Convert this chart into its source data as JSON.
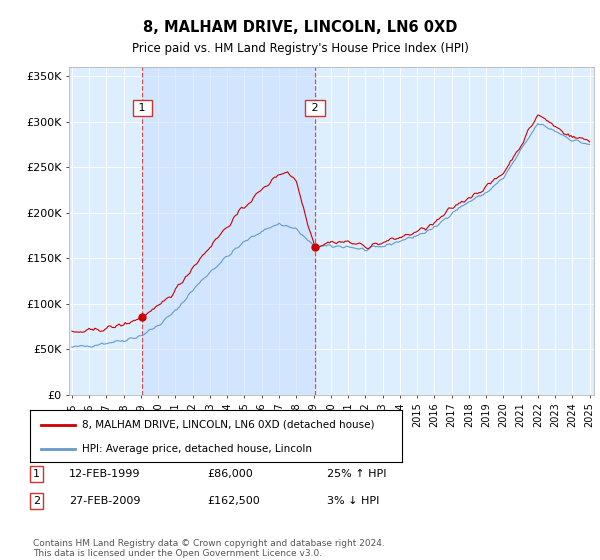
{
  "title": "8, MALHAM DRIVE, LINCOLN, LN6 0XD",
  "subtitle": "Price paid vs. HM Land Registry's House Price Index (HPI)",
  "background_color": "#ffffff",
  "plot_bg_color": "#ddeeff",
  "grid_color": "#ffffff",
  "ylim": [
    0,
    360000
  ],
  "yticks": [
    0,
    50000,
    100000,
    150000,
    200000,
    250000,
    300000,
    350000
  ],
  "ytick_labels": [
    "£0",
    "£50K",
    "£100K",
    "£150K",
    "£200K",
    "£250K",
    "£300K",
    "£350K"
  ],
  "sale1_month": 49,
  "sale1_price": 86000,
  "sale2_month": 169,
  "sale2_price": 162500,
  "red_line_color": "#cc0000",
  "blue_line_color": "#6699cc",
  "shade_color": "#cce0ff",
  "dashed_line_color": "#cc3333",
  "legend_label_red": "8, MALHAM DRIVE, LINCOLN, LN6 0XD (detached house)",
  "legend_label_blue": "HPI: Average price, detached house, Lincoln",
  "sale1_date_str": "12-FEB-1999",
  "sale1_price_str": "£86,000",
  "sale1_hpi_str": "25% ↑ HPI",
  "sale2_date_str": "27-FEB-2009",
  "sale2_price_str": "£162,500",
  "sale2_hpi_str": "3% ↓ HPI",
  "footnote": "Contains HM Land Registry data © Crown copyright and database right 2024.\nThis data is licensed under the Open Government Licence v3.0.",
  "xtick_years": [
    1995,
    1996,
    1997,
    1998,
    1999,
    2000,
    2001,
    2002,
    2003,
    2004,
    2005,
    2006,
    2007,
    2008,
    2009,
    2010,
    2011,
    2012,
    2013,
    2014,
    2015,
    2016,
    2017,
    2018,
    2019,
    2020,
    2021,
    2022,
    2023,
    2024,
    2025
  ],
  "total_months": 361
}
